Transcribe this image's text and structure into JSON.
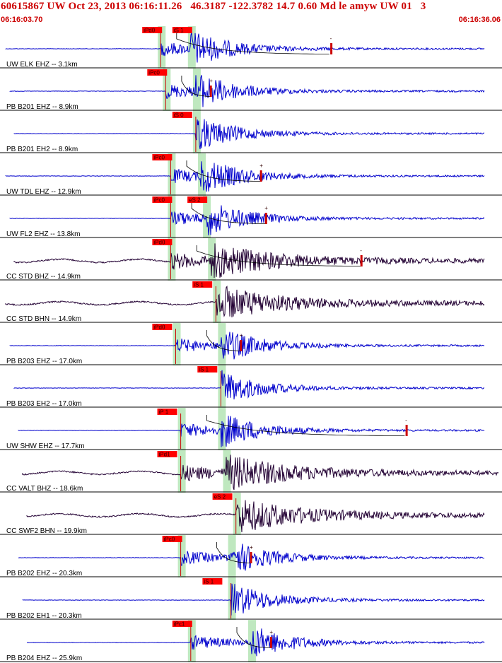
{
  "header": {
    "title": "60615867 UW Oct 23, 2013 06:16:11.26   46.3187 -122.3782 14.7 0.60 Md le amyw UW 01   3",
    "start_time": "06:16:03.70",
    "end_time": "06:16:36.06"
  },
  "colors": {
    "trace_blue": "#0000cc",
    "trace_dark": "#220033",
    "pick_box": "#ff0000",
    "pick_window": "#bfe8bf",
    "coda_line": "#cc0000",
    "title_red": "#cc0000"
  },
  "traces": [
    {
      "label": "UW ELK EHZ -- 3.1km",
      "color": "blue",
      "picks": [
        {
          "tag": "iPd0",
          "p": 0.32
        },
        {
          "tag": "iS 1",
          "p": 0.38
        }
      ],
      "onset": 0.32,
      "s_onset": 0.38,
      "coda_mark": 0.66,
      "coda_sign": "-"
    },
    {
      "label": "PB B201 EHZ -- 8.9km",
      "color": "blue",
      "picks": [
        {
          "tag": "iPc0",
          "p": 0.33
        }
      ],
      "onset": 0.33,
      "s_onset": 0.39,
      "coda_mark": 0.42,
      "coda_sign": "+"
    },
    {
      "label": "PB B201 EH2 -- 8.9km",
      "color": "blue",
      "picks": [
        {
          "tag": "iS 0",
          "p": 0.38
        }
      ],
      "onset": 0.39,
      "s_onset": 0.39,
      "coda_mark": null,
      "coda_sign": ""
    },
    {
      "label": "UW TDL EHZ -- 12.9km",
      "color": "blue",
      "picks": [
        {
          "tag": "iPc0",
          "p": 0.34
        }
      ],
      "onset": 0.34,
      "s_onset": 0.4,
      "coda_mark": 0.52,
      "coda_sign": "+"
    },
    {
      "label": "UW FL2 EHZ -- 13.8km",
      "color": "blue",
      "picks": [
        {
          "tag": "iPc0",
          "p": 0.34
        },
        {
          "tag": "eS 2",
          "p": 0.41
        }
      ],
      "onset": 0.34,
      "s_onset": 0.41,
      "coda_mark": 0.53,
      "coda_sign": "+"
    },
    {
      "label": "CC STD BHZ -- 14.9km",
      "color": "dark",
      "picks": [
        {
          "tag": "iPd0",
          "p": 0.34
        }
      ],
      "onset": 0.34,
      "s_onset": 0.42,
      "coda_mark": 0.72,
      "coda_sign": "-"
    },
    {
      "label": "CC STD BHN -- 14.9km",
      "color": "dark",
      "picks": [
        {
          "tag": "iS 1",
          "p": 0.42
        }
      ],
      "onset": 0.43,
      "s_onset": 0.43,
      "coda_mark": null,
      "coda_sign": ""
    },
    {
      "label": "PB B203 EHZ -- 17.0km",
      "color": "blue",
      "picks": [
        {
          "tag": "iPd0",
          "p": 0.34
        }
      ],
      "onset": 0.35,
      "s_onset": 0.44,
      "coda_mark": 0.48,
      "coda_sign": "+"
    },
    {
      "label": "PB B203 EH2 -- 17.0km",
      "color": "blue",
      "picks": [
        {
          "tag": "iS 1",
          "p": 0.43
        }
      ],
      "onset": 0.44,
      "s_onset": 0.44,
      "coda_mark": null,
      "coda_sign": ""
    },
    {
      "label": "UW SHW EHZ -- 17.7km",
      "color": "blue",
      "picks": [
        {
          "tag": "iP 1",
          "p": 0.35
        }
      ],
      "onset": 0.36,
      "s_onset": 0.44,
      "coda_mark": 0.81,
      "coda_sign": "-"
    },
    {
      "label": "CC VALT BHZ -- 18.6km",
      "color": "dark",
      "picks": [
        {
          "tag": "iPd1",
          "p": 0.35
        }
      ],
      "onset": 0.36,
      "s_onset": 0.45,
      "coda_mark": null,
      "coda_sign": ""
    },
    {
      "label": "CC SWF2 BHN -- 19.9km",
      "color": "dark",
      "picks": [
        {
          "tag": "eS 2",
          "p": 0.46
        }
      ],
      "onset": 0.47,
      "s_onset": 0.47,
      "coda_mark": null,
      "coda_sign": ""
    },
    {
      "label": "PB B202 EHZ -- 20.3km",
      "color": "blue",
      "picks": [
        {
          "tag": "iPc0",
          "p": 0.36
        }
      ],
      "onset": 0.36,
      "s_onset": 0.46,
      "coda_mark": 0.5,
      "coda_sign": "+"
    },
    {
      "label": "PB B202 EH1 -- 20.3km",
      "color": "blue",
      "picks": [
        {
          "tag": "iS 1",
          "p": 0.44
        }
      ],
      "onset": 0.46,
      "s_onset": 0.46,
      "coda_mark": null,
      "coda_sign": ""
    },
    {
      "label": "PB B204 EHZ -- 25.9km",
      "color": "blue",
      "picks": [
        {
          "tag": "iPc1",
          "p": 0.38
        }
      ],
      "onset": 0.38,
      "s_onset": 0.5,
      "coda_mark": 0.54,
      "coda_sign": "+"
    }
  ]
}
